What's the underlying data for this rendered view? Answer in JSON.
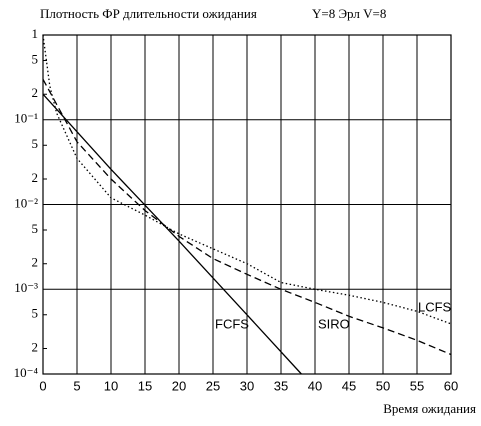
{
  "chart_data": {
    "type": "line",
    "title": "Плотность ФР длительности ожидания",
    "annotation": "Y=8 Эрл   V=8",
    "x_label": "Время ожидания",
    "log_y": true,
    "grid": true,
    "xlim": [
      0,
      60
    ],
    "xticks": [
      0,
      5,
      10,
      15,
      20,
      25,
      30,
      35,
      40,
      45,
      50,
      55,
      60
    ],
    "ylim": [
      0.0001,
      1
    ],
    "yticks": [
      1,
      {
        "value": 0.5,
        "label": "5"
      },
      {
        "value": 0.2,
        "label": "2"
      },
      {
        "value": 0.1,
        "label": "10⁻¹"
      },
      {
        "value": 0.05,
        "label": "5"
      },
      {
        "value": 0.02,
        "label": "2"
      },
      {
        "value": 0.01,
        "label": "10⁻²"
      },
      {
        "value": 0.005,
        "label": "5"
      },
      {
        "value": 0.002,
        "label": "2"
      },
      {
        "value": 0.001,
        "label": "10⁻³"
      },
      {
        "value": 0.0005,
        "label": "5"
      },
      {
        "value": 0.0002,
        "label": "2"
      },
      {
        "value": 0.0001,
        "label": "10⁻⁴"
      }
    ],
    "series": [
      {
        "name": "FCFS",
        "color": "#000000",
        "style": "solid",
        "x": [
          0,
          10,
          20,
          30,
          38
        ],
        "values": [
          0.2,
          0.026,
          0.0037,
          0.0005,
          0.0001
        ]
      },
      {
        "name": "SIRO",
        "color": "#000000",
        "style": "dashed",
        "x": [
          0,
          5,
          10,
          15,
          20,
          25,
          30,
          35,
          40,
          45,
          50,
          55,
          60
        ],
        "values": [
          0.3,
          0.055,
          0.02,
          0.0085,
          0.0042,
          0.0023,
          0.0015,
          0.001,
          0.0007,
          0.00048,
          0.00035,
          0.00025,
          0.00017
        ]
      },
      {
        "name": "LCFS",
        "color": "#000000",
        "style": "dotted",
        "x": [
          0,
          1,
          2,
          5,
          10,
          15,
          20,
          25,
          30,
          35,
          40,
          45,
          50,
          55,
          60
        ],
        "values": [
          1,
          0.25,
          0.12,
          0.035,
          0.012,
          0.0075,
          0.0045,
          0.003,
          0.002,
          0.0012,
          0.001,
          0.00085,
          0.0007,
          0.00055,
          0.00039
        ]
      }
    ]
  }
}
